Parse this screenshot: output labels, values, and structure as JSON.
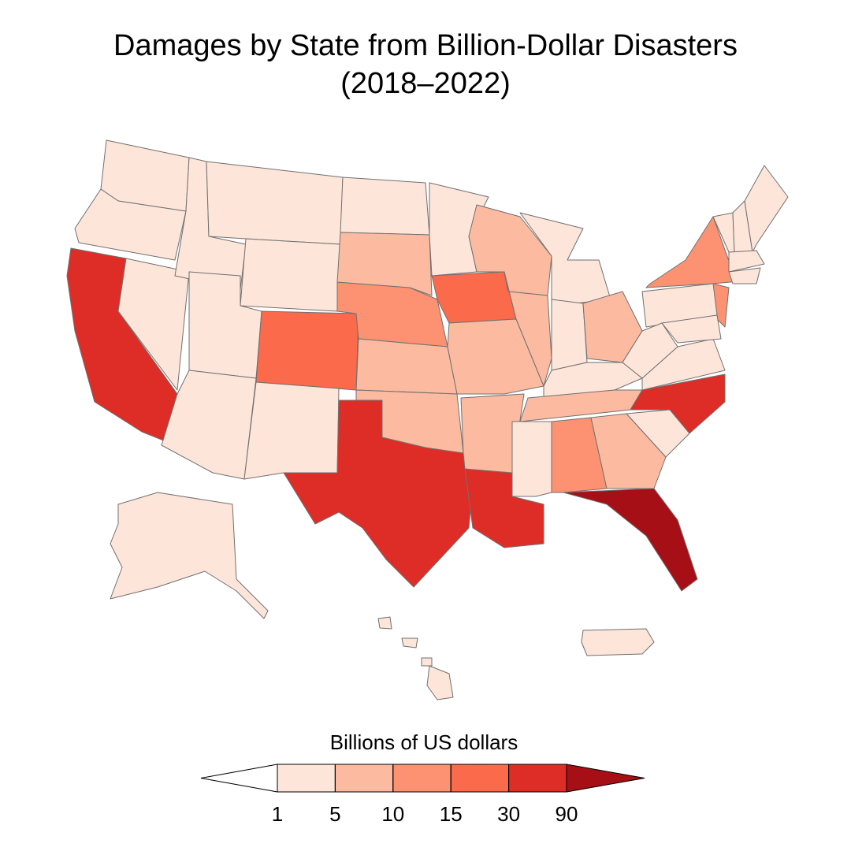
{
  "title": "Damages by State from Billion-Dollar Disasters",
  "subtitle": "(2018–2022)",
  "legend": {
    "title": "Billions of US dollars",
    "ticks": [
      1,
      5,
      10,
      15,
      30,
      90
    ],
    "colors": [
      "#ffffff",
      "#fee5d9",
      "#fcbba1",
      "#fc9272",
      "#fb6a4a",
      "#de2d26",
      "#a50f15"
    ]
  },
  "state_classes": [
    1,
    1,
    5,
    1,
    1,
    1,
    1,
    1,
    4,
    1,
    1,
    1,
    3,
    2,
    2,
    5,
    2,
    4,
    1,
    5,
    2,
    2,
    1,
    1,
    2,
    1,
    2,
    1,
    2,
    3,
    6,
    2,
    5,
    1,
    1,
    2,
    3,
    3,
    1,
    1,
    1,
    1,
    1,
    1,
    1,
    1,
    1
  ]
}
